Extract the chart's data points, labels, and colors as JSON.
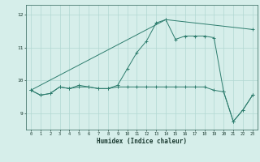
{
  "title": "",
  "xlabel": "Humidex (Indice chaleur)",
  "x": [
    0,
    1,
    2,
    3,
    4,
    5,
    6,
    7,
    8,
    9,
    10,
    11,
    12,
    13,
    14,
    15,
    16,
    17,
    18,
    19,
    20,
    21,
    22,
    23
  ],
  "line1": [
    9.7,
    9.55,
    9.6,
    9.8,
    9.75,
    9.85,
    9.8,
    9.75,
    9.75,
    9.85,
    10.35,
    10.85,
    11.2,
    11.75,
    11.85,
    11.25,
    11.35,
    11.35,
    11.35,
    11.3,
    9.65,
    8.75,
    9.1,
    9.55
  ],
  "line2": [
    9.7,
    9.55,
    9.6,
    9.8,
    9.75,
    9.8,
    9.8,
    9.75,
    9.75,
    9.8,
    9.8,
    9.8,
    9.8,
    9.8,
    9.8,
    9.8,
    9.8,
    9.8,
    9.8,
    9.7,
    9.65,
    8.75,
    9.1,
    9.55
  ],
  "line3_x": [
    0,
    14,
    23
  ],
  "line3_y": [
    9.7,
    11.85,
    11.55
  ],
  "line_color": "#2e7d6e",
  "background_color": "#d6eeea",
  "grid_color": "#b2d8d2",
  "ylim": [
    8.5,
    12.3
  ],
  "xlim": [
    -0.5,
    23.5
  ]
}
